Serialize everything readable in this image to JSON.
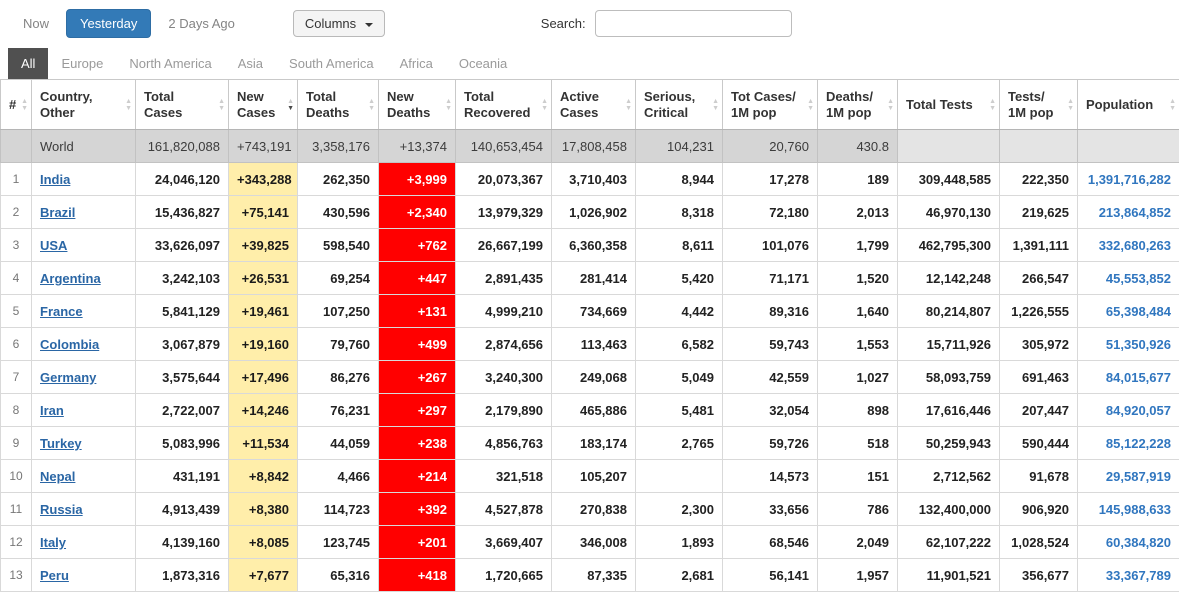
{
  "toolbar": {
    "now": "Now",
    "yesterday": "Yesterday",
    "two_days_ago": "2 Days Ago",
    "columns": "Columns",
    "search_label": "Search:",
    "search_value": ""
  },
  "tabs": [
    {
      "label": "All",
      "active": true
    },
    {
      "label": "Europe",
      "active": false
    },
    {
      "label": "North America",
      "active": false
    },
    {
      "label": "Asia",
      "active": false
    },
    {
      "label": "South America",
      "active": false
    },
    {
      "label": "Africa",
      "active": false
    },
    {
      "label": "Oceania",
      "active": false
    }
  ],
  "table": {
    "headers": [
      {
        "key": "rank",
        "label": "#",
        "sorted": ""
      },
      {
        "key": "country",
        "label": "Country, Other",
        "sorted": ""
      },
      {
        "key": "total_cases",
        "label": "Total Cases",
        "sorted": ""
      },
      {
        "key": "new_cases",
        "label": "New Cases",
        "sorted": "desc"
      },
      {
        "key": "total_deaths",
        "label": "Total Deaths",
        "sorted": ""
      },
      {
        "key": "new_deaths",
        "label": "New Deaths",
        "sorted": ""
      },
      {
        "key": "total_recovered",
        "label": "Total Recovered",
        "sorted": ""
      },
      {
        "key": "active_cases",
        "label": "Active Cases",
        "sorted": ""
      },
      {
        "key": "serious_critical",
        "label": "Serious, Critical",
        "sorted": ""
      },
      {
        "key": "cases_per_1m",
        "label": "Tot Cases/ 1M pop",
        "sorted": ""
      },
      {
        "key": "deaths_per_1m",
        "label": "Deaths/ 1M pop",
        "sorted": ""
      },
      {
        "key": "total_tests",
        "label": "Total Tests",
        "sorted": ""
      },
      {
        "key": "tests_per_1m",
        "label": "Tests/ 1M pop",
        "sorted": ""
      },
      {
        "key": "population",
        "label": "Population",
        "sorted": ""
      }
    ],
    "world_row": {
      "rank": "",
      "country": "World",
      "total_cases": "161,820,088",
      "new_cases": "+743,191",
      "total_deaths": "3,358,176",
      "new_deaths": "+13,374",
      "total_recovered": "140,653,454",
      "active_cases": "17,808,458",
      "serious_critical": "104,231",
      "cases_per_1m": "20,760",
      "deaths_per_1m": "430.8",
      "total_tests": "",
      "tests_per_1m": "",
      "population": ""
    },
    "rows": [
      {
        "rank": "1",
        "country": "India",
        "total_cases": "24,046,120",
        "new_cases": "+343,288",
        "total_deaths": "262,350",
        "new_deaths": "+3,999",
        "total_recovered": "20,073,367",
        "active_cases": "3,710,403",
        "serious_critical": "8,944",
        "cases_per_1m": "17,278",
        "deaths_per_1m": "189",
        "total_tests": "309,448,585",
        "tests_per_1m": "222,350",
        "population": "1,391,716,282"
      },
      {
        "rank": "2",
        "country": "Brazil",
        "total_cases": "15,436,827",
        "new_cases": "+75,141",
        "total_deaths": "430,596",
        "new_deaths": "+2,340",
        "total_recovered": "13,979,329",
        "active_cases": "1,026,902",
        "serious_critical": "8,318",
        "cases_per_1m": "72,180",
        "deaths_per_1m": "2,013",
        "total_tests": "46,970,130",
        "tests_per_1m": "219,625",
        "population": "213,864,852"
      },
      {
        "rank": "3",
        "country": "USA",
        "total_cases": "33,626,097",
        "new_cases": "+39,825",
        "total_deaths": "598,540",
        "new_deaths": "+762",
        "total_recovered": "26,667,199",
        "active_cases": "6,360,358",
        "serious_critical": "8,611",
        "cases_per_1m": "101,076",
        "deaths_per_1m": "1,799",
        "total_tests": "462,795,300",
        "tests_per_1m": "1,391,111",
        "population": "332,680,263"
      },
      {
        "rank": "4",
        "country": "Argentina",
        "total_cases": "3,242,103",
        "new_cases": "+26,531",
        "total_deaths": "69,254",
        "new_deaths": "+447",
        "total_recovered": "2,891,435",
        "active_cases": "281,414",
        "serious_critical": "5,420",
        "cases_per_1m": "71,171",
        "deaths_per_1m": "1,520",
        "total_tests": "12,142,248",
        "tests_per_1m": "266,547",
        "population": "45,553,852"
      },
      {
        "rank": "5",
        "country": "France",
        "total_cases": "5,841,129",
        "new_cases": "+19,461",
        "total_deaths": "107,250",
        "new_deaths": "+131",
        "total_recovered": "4,999,210",
        "active_cases": "734,669",
        "serious_critical": "4,442",
        "cases_per_1m": "89,316",
        "deaths_per_1m": "1,640",
        "total_tests": "80,214,807",
        "tests_per_1m": "1,226,555",
        "population": "65,398,484"
      },
      {
        "rank": "6",
        "country": "Colombia",
        "total_cases": "3,067,879",
        "new_cases": "+19,160",
        "total_deaths": "79,760",
        "new_deaths": "+499",
        "total_recovered": "2,874,656",
        "active_cases": "113,463",
        "serious_critical": "6,582",
        "cases_per_1m": "59,743",
        "deaths_per_1m": "1,553",
        "total_tests": "15,711,926",
        "tests_per_1m": "305,972",
        "population": "51,350,926"
      },
      {
        "rank": "7",
        "country": "Germany",
        "total_cases": "3,575,644",
        "new_cases": "+17,496",
        "total_deaths": "86,276",
        "new_deaths": "+267",
        "total_recovered": "3,240,300",
        "active_cases": "249,068",
        "serious_critical": "5,049",
        "cases_per_1m": "42,559",
        "deaths_per_1m": "1,027",
        "total_tests": "58,093,759",
        "tests_per_1m": "691,463",
        "population": "84,015,677"
      },
      {
        "rank": "8",
        "country": "Iran",
        "total_cases": "2,722,007",
        "new_cases": "+14,246",
        "total_deaths": "76,231",
        "new_deaths": "+297",
        "total_recovered": "2,179,890",
        "active_cases": "465,886",
        "serious_critical": "5,481",
        "cases_per_1m": "32,054",
        "deaths_per_1m": "898",
        "total_tests": "17,616,446",
        "tests_per_1m": "207,447",
        "population": "84,920,057"
      },
      {
        "rank": "9",
        "country": "Turkey",
        "total_cases": "5,083,996",
        "new_cases": "+11,534",
        "total_deaths": "44,059",
        "new_deaths": "+238",
        "total_recovered": "4,856,763",
        "active_cases": "183,174",
        "serious_critical": "2,765",
        "cases_per_1m": "59,726",
        "deaths_per_1m": "518",
        "total_tests": "50,259,943",
        "tests_per_1m": "590,444",
        "population": "85,122,228"
      },
      {
        "rank": "10",
        "country": "Nepal",
        "total_cases": "431,191",
        "new_cases": "+8,842",
        "total_deaths": "4,466",
        "new_deaths": "+214",
        "total_recovered": "321,518",
        "active_cases": "105,207",
        "serious_critical": "",
        "cases_per_1m": "14,573",
        "deaths_per_1m": "151",
        "total_tests": "2,712,562",
        "tests_per_1m": "91,678",
        "population": "29,587,919"
      },
      {
        "rank": "11",
        "country": "Russia",
        "total_cases": "4,913,439",
        "new_cases": "+8,380",
        "total_deaths": "114,723",
        "new_deaths": "+392",
        "total_recovered": "4,527,878",
        "active_cases": "270,838",
        "serious_critical": "2,300",
        "cases_per_1m": "33,656",
        "deaths_per_1m": "786",
        "total_tests": "132,400,000",
        "tests_per_1m": "906,920",
        "population": "145,988,633"
      },
      {
        "rank": "12",
        "country": "Italy",
        "total_cases": "4,139,160",
        "new_cases": "+8,085",
        "total_deaths": "123,745",
        "new_deaths": "+201",
        "total_recovered": "3,669,407",
        "active_cases": "346,008",
        "serious_critical": "1,893",
        "cases_per_1m": "68,546",
        "deaths_per_1m": "2,049",
        "total_tests": "62,107,222",
        "tests_per_1m": "1,028,524",
        "population": "60,384,820"
      },
      {
        "rank": "13",
        "country": "Peru",
        "total_cases": "1,873,316",
        "new_cases": "+7,677",
        "total_deaths": "65,316",
        "new_deaths": "+418",
        "total_recovered": "1,720,665",
        "active_cases": "87,335",
        "serious_critical": "2,681",
        "cases_per_1m": "56,141",
        "deaths_per_1m": "1,957",
        "total_tests": "11,901,521",
        "tests_per_1m": "356,677",
        "population": "33,367,789"
      }
    ]
  },
  "colors": {
    "active_time_button_bg": "#337ab7",
    "active_tab_bg": "#505050",
    "new_cases_cell_bg": "#ffeeaa",
    "new_deaths_cell_bg": "#ff0000",
    "new_deaths_text": "#ffffff",
    "world_row_bg": "#d5d5d5",
    "country_link_color": "#2a66a5",
    "population_text_color": "#3076bf"
  }
}
